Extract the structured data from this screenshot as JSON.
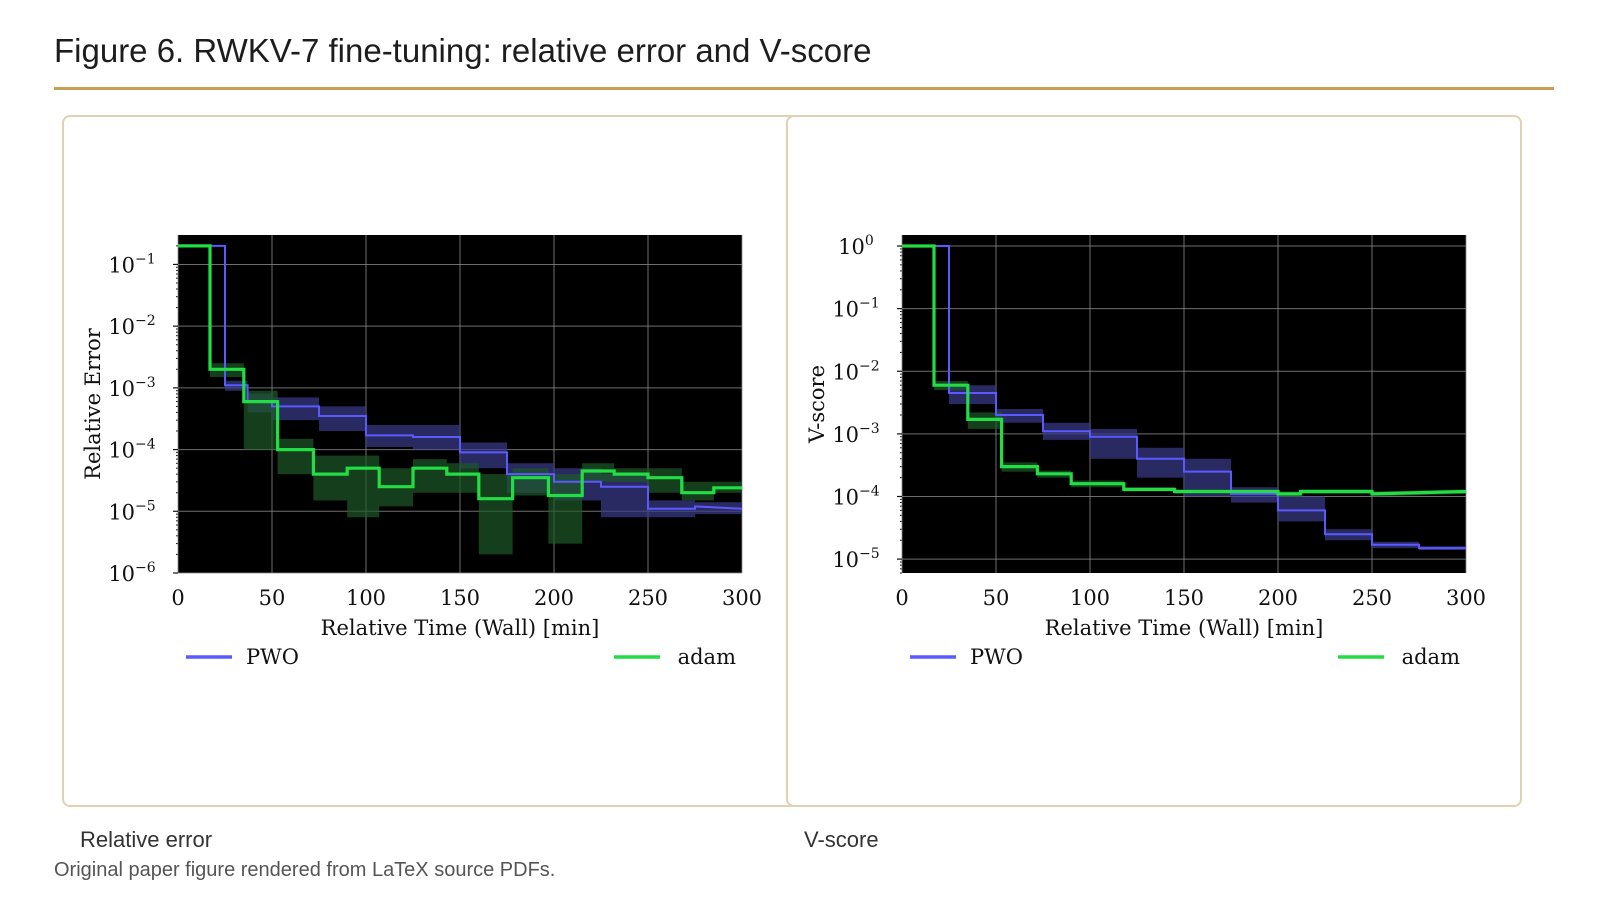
{
  "figure": {
    "title": "Figure 6. RWKV-7 fine-tuning: relative error and V-score",
    "footnote": "Original paper figure rendered from LaTeX source PDFs."
  },
  "panels": [
    {
      "caption": "Relative error"
    },
    {
      "caption": "V-score"
    }
  ],
  "chart_data": [
    {
      "type": "line",
      "xlabel": "Relative Time (Wall) [min]",
      "ylabel": "Relative Error",
      "xlim": [
        0,
        300
      ],
      "ylim": [
        1e-06,
        0.3
      ],
      "yscale": "log",
      "xticks": [
        0,
        50,
        100,
        150,
        200,
        250,
        300
      ],
      "yticks": [
        {
          "base": "10",
          "exp": "−1",
          "value": 0.1
        },
        {
          "base": "10",
          "exp": "−2",
          "value": 0.01
        },
        {
          "base": "10",
          "exp": "−3",
          "value": 0.001
        },
        {
          "base": "10",
          "exp": "−4",
          "value": 0.0001
        },
        {
          "base": "10",
          "exp": "−5",
          "value": 1e-05
        },
        {
          "base": "10",
          "exp": "−6",
          "value": 1e-06
        }
      ],
      "grid": true,
      "background": "#000000",
      "legend_placement": "bottom",
      "series": [
        {
          "name": "PWO",
          "color": "#5a5aff",
          "band_color": "#3c3c8c",
          "x": [
            0,
            25,
            25,
            37,
            37,
            50,
            50,
            75,
            75,
            100,
            100,
            125,
            125,
            150,
            150,
            175,
            175,
            200,
            200,
            225,
            225,
            250,
            250,
            275,
            275,
            300
          ],
          "y": [
            0.2,
            0.2,
            0.0011,
            0.0011,
            0.0006,
            0.0006,
            0.0005,
            0.0005,
            0.00035,
            0.00035,
            0.00017,
            0.00017,
            0.00016,
            0.00016,
            9e-05,
            9e-05,
            4e-05,
            4e-05,
            3e-05,
            3e-05,
            2.5e-05,
            2.5e-05,
            1.1e-05,
            1.1e-05,
            1.2e-05,
            1.1e-05
          ],
          "band_lower": [
            0.2,
            0.2,
            0.0009,
            0.0009,
            0.0004,
            0.0004,
            0.0003,
            0.0003,
            0.0002,
            0.0002,
            0.00011,
            0.00011,
            0.0001,
            0.0001,
            5e-05,
            5e-05,
            2e-05,
            2e-05,
            1.5e-05,
            1.5e-05,
            8e-06,
            8e-06,
            8e-06,
            8e-06,
            9e-06,
            9e-06
          ],
          "band_upper": [
            0.2,
            0.2,
            0.0013,
            0.0013,
            0.0008,
            0.0008,
            0.0007,
            0.0007,
            0.0005,
            0.0005,
            0.00025,
            0.00025,
            0.00025,
            0.00025,
            0.00013,
            0.00013,
            6e-05,
            6e-05,
            5e-05,
            5e-05,
            4e-05,
            4e-05,
            1.5e-05,
            1.5e-05,
            1.4e-05,
            1.4e-05
          ]
        },
        {
          "name": "adam",
          "color": "#22dd44",
          "band_color": "#1e5a28",
          "x": [
            0,
            17,
            17,
            35,
            35,
            53,
            53,
            72,
            72,
            90,
            90,
            107,
            107,
            125,
            125,
            143,
            143,
            160,
            160,
            178,
            178,
            197,
            197,
            215,
            215,
            232,
            232,
            250,
            250,
            268,
            268,
            285,
            285,
            300
          ],
          "y": [
            0.2,
            0.2,
            0.002,
            0.002,
            0.0006,
            0.0006,
            0.0001,
            0.0001,
            4e-05,
            4e-05,
            5e-05,
            5e-05,
            2.5e-05,
            2.5e-05,
            5e-05,
            5e-05,
            4e-05,
            4e-05,
            1.6e-05,
            1.6e-05,
            3.5e-05,
            3.5e-05,
            1.8e-05,
            1.8e-05,
            4.5e-05,
            4.5e-05,
            4e-05,
            4e-05,
            3.5e-05,
            3.5e-05,
            2e-05,
            2e-05,
            2.4e-05,
            2.4e-05
          ],
          "band_lower": [
            0.2,
            0.2,
            0.0015,
            0.0015,
            0.0001,
            0.0001,
            4e-05,
            4e-05,
            1.5e-05,
            1.5e-05,
            8e-06,
            8e-06,
            1.2e-05,
            1.2e-05,
            2e-05,
            2e-05,
            2e-05,
            2e-05,
            2e-06,
            2e-06,
            1.8e-05,
            1.8e-05,
            3e-06,
            3e-06,
            3e-05,
            3e-05,
            3e-05,
            3e-05,
            2e-05,
            2e-05,
            1.5e-05,
            1.5e-05,
            2e-05,
            2e-05
          ],
          "band_upper": [
            0.2,
            0.2,
            0.0025,
            0.0025,
            0.0009,
            0.0009,
            0.00015,
            0.00015,
            8e-05,
            8e-05,
            8e-05,
            8e-05,
            5e-05,
            5e-05,
            7e-05,
            7e-05,
            6e-05,
            6e-05,
            4e-05,
            4e-05,
            5e-05,
            5e-05,
            4e-05,
            4e-05,
            6e-05,
            6e-05,
            5e-05,
            5e-05,
            5e-05,
            5e-05,
            3e-05,
            3e-05,
            3e-05,
            3e-05
          ]
        }
      ]
    },
    {
      "type": "line",
      "xlabel": "Relative Time (Wall) [min]",
      "ylabel": "V-score",
      "xlim": [
        0,
        300
      ],
      "ylim": [
        6e-06,
        1.5
      ],
      "yscale": "log",
      "xticks": [
        0,
        50,
        100,
        150,
        200,
        250,
        300
      ],
      "yticks": [
        {
          "base": "10",
          "exp": "0",
          "value": 1
        },
        {
          "base": "10",
          "exp": "−1",
          "value": 0.1
        },
        {
          "base": "10",
          "exp": "−2",
          "value": 0.01
        },
        {
          "base": "10",
          "exp": "−3",
          "value": 0.001
        },
        {
          "base": "10",
          "exp": "−4",
          "value": 0.0001
        },
        {
          "base": "10",
          "exp": "−5",
          "value": 1e-05
        }
      ],
      "grid": true,
      "background": "#000000",
      "legend_placement": "bottom",
      "series": [
        {
          "name": "PWO",
          "color": "#5a5aff",
          "band_color": "#3c3c8c",
          "x": [
            0,
            25,
            25,
            50,
            50,
            75,
            75,
            100,
            100,
            125,
            125,
            150,
            150,
            175,
            175,
            200,
            200,
            225,
            225,
            250,
            250,
            275,
            275,
            300
          ],
          "y": [
            1,
            1,
            0.0045,
            0.0045,
            0.002,
            0.002,
            0.0011,
            0.0011,
            0.0009,
            0.0009,
            0.0004,
            0.0004,
            0.00025,
            0.00025,
            0.00011,
            0.00011,
            6e-05,
            6e-05,
            2.5e-05,
            2.5e-05,
            1.7e-05,
            1.7e-05,
            1.5e-05,
            1.5e-05
          ],
          "band_lower": [
            1,
            1,
            0.003,
            0.003,
            0.0015,
            0.0015,
            0.0008,
            0.0008,
            0.0004,
            0.0004,
            0.0002,
            0.0002,
            0.0001,
            0.0001,
            8e-05,
            8e-05,
            4e-05,
            4e-05,
            2e-05,
            2e-05,
            1.5e-05,
            1.5e-05,
            1.4e-05,
            1.4e-05
          ],
          "band_upper": [
            1,
            1,
            0.006,
            0.006,
            0.0025,
            0.0025,
            0.0015,
            0.0015,
            0.0012,
            0.0012,
            0.0006,
            0.0006,
            0.0004,
            0.0004,
            0.00014,
            0.00014,
            0.0001,
            0.0001,
            3e-05,
            3e-05,
            1.9e-05,
            1.9e-05,
            1.6e-05,
            1.6e-05
          ]
        },
        {
          "name": "adam",
          "color": "#22dd44",
          "band_color": "#1e5a28",
          "x": [
            0,
            17,
            17,
            35,
            35,
            53,
            53,
            72,
            72,
            90,
            90,
            118,
            118,
            145,
            145,
            200,
            200,
            212,
            212,
            250,
            250,
            300
          ],
          "y": [
            1,
            1,
            0.006,
            0.006,
            0.0017,
            0.0017,
            0.0003,
            0.0003,
            0.00023,
            0.00023,
            0.00016,
            0.00016,
            0.00013,
            0.00013,
            0.00012,
            0.00012,
            0.00011,
            0.00011,
            0.00012,
            0.00012,
            0.00011,
            0.00012
          ],
          "band_lower": [
            1,
            1,
            0.005,
            0.005,
            0.0012,
            0.0012,
            0.00025,
            0.00025,
            0.0002,
            0.0002,
            0.00014,
            0.00014,
            0.00012,
            0.00012,
            0.00011,
            0.00011,
            0.0001,
            0.0001,
            0.00011,
            0.00011,
            0.0001,
            0.00011
          ],
          "band_upper": [
            1,
            1,
            0.007,
            0.007,
            0.0022,
            0.0022,
            0.00035,
            0.00035,
            0.00026,
            0.00026,
            0.00018,
            0.00018,
            0.00014,
            0.00014,
            0.00013,
            0.00013,
            0.00012,
            0.00012,
            0.00013,
            0.00013,
            0.00012,
            0.00013
          ]
        }
      ]
    }
  ]
}
